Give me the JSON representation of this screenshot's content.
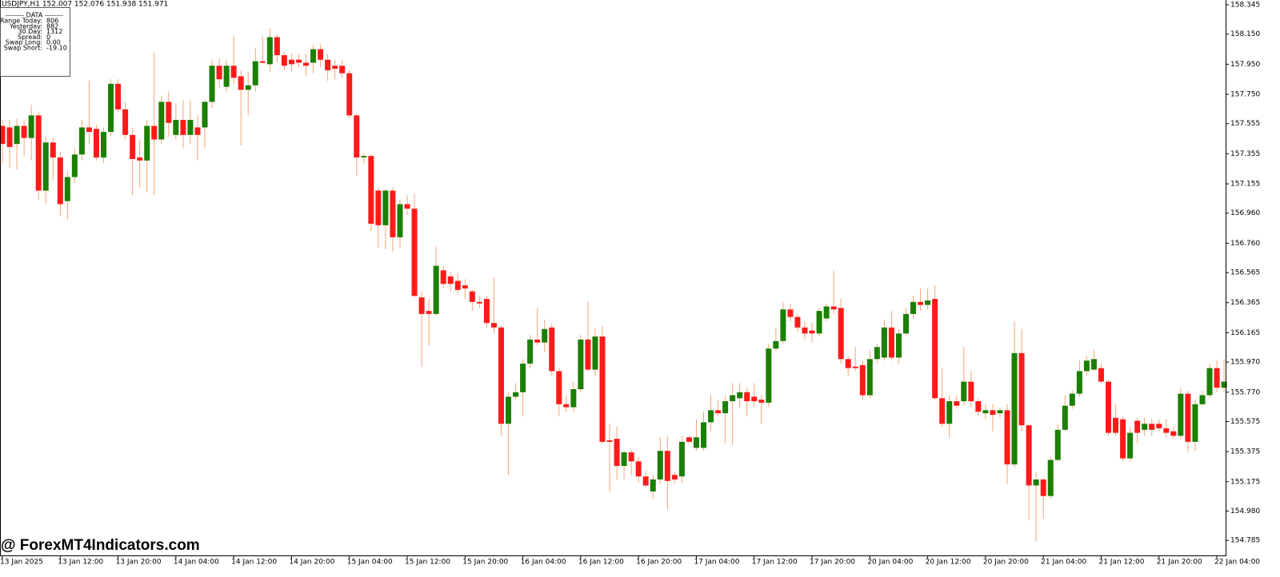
{
  "chart_data": {
    "type": "candlestick",
    "title": "USDJPY,H1  152.007 152.076 151.938 151.971",
    "watermark": "@ ForexMT4Indicators.com",
    "up_color": "#1b7f00",
    "down_color": "#ff1a1a",
    "wick_color": "#f2a57a",
    "ylim": [
      154.685,
      158.377
    ],
    "yticks": [
      158.345,
      {
        "value": 158.15,
        "label": "158.150"
      },
      {
        "value": 157.95,
        "label": "157.950"
      },
      {
        "value": 157.75,
        "label": "157.750"
      },
      157.555,
      157.355,
      157.155,
      {
        "value": 156.96,
        "label": "156.960"
      },
      {
        "value": 156.76,
        "label": "156.760"
      },
      156.565,
      156.365,
      156.165,
      {
        "value": 155.97,
        "label": "155.970"
      },
      {
        "value": 155.77,
        "label": "155.770"
      },
      155.575,
      155.375,
      155.175,
      {
        "value": 154.98,
        "label": "154.980"
      },
      154.785
    ],
    "xticks": [
      {
        "value": 0,
        "label": "13 Jan 2025"
      },
      {
        "value": 8,
        "label": "13 Jan 12:00"
      },
      {
        "value": 16,
        "label": "13 Jan 20:00"
      },
      {
        "value": 24,
        "label": "14 Jan 04:00"
      },
      {
        "value": 32,
        "label": "14 Jan 12:00"
      },
      {
        "value": 40,
        "label": "14 Jan 20:00"
      },
      {
        "value": 48,
        "label": "15 Jan 04:00"
      },
      {
        "value": 56,
        "label": "15 Jan 12:00"
      },
      {
        "value": 64,
        "label": "15 Jan 20:00"
      },
      {
        "value": 72,
        "label": "16 Jan 04:00"
      },
      {
        "value": 80,
        "label": "16 Jan 12:00"
      },
      {
        "value": 88,
        "label": "16 Jan 20:00"
      },
      {
        "value": 96,
        "label": "17 Jan 04:00"
      },
      {
        "value": 104,
        "label": "17 Jan 12:00"
      },
      {
        "value": 112,
        "label": "17 Jan 20:00"
      },
      {
        "value": 120,
        "label": "20 Jan 04:00"
      },
      {
        "value": 128,
        "label": "20 Jan 12:00"
      },
      {
        "value": 136,
        "label": "20 Jan 20:00"
      },
      {
        "value": 144,
        "label": "21 Jan 04:00"
      },
      {
        "value": 152,
        "label": "21 Jan 12:00"
      },
      {
        "value": 160,
        "label": "21 Jan 20:00"
      },
      {
        "value": 168,
        "label": "22 Jan 04:00"
      }
    ],
    "data_panel": {
      "title": "--------  DATA  --------",
      "rows": [
        [
          "Range Today:",
          "806"
        ],
        [
          "Yesterday:",
          "882"
        ],
        [
          "30 Day:",
          "1312"
        ],
        [
          "Spread:",
          "0"
        ],
        [
          "Swap Long:",
          "0.00"
        ],
        [
          "Swap Short:",
          "-19.10"
        ]
      ]
    },
    "ohlc": [
      [
        157.54,
        157.58,
        157.29,
        157.42
      ],
      [
        157.53,
        157.58,
        157.26,
        157.4
      ],
      [
        157.42,
        157.59,
        157.25,
        157.54
      ],
      [
        157.54,
        157.58,
        157.34,
        157.46
      ],
      [
        157.46,
        157.68,
        157.31,
        157.61
      ],
      [
        157.61,
        157.63,
        157.05,
        157.11
      ],
      [
        157.11,
        157.47,
        157.02,
        157.43
      ],
      [
        157.43,
        157.46,
        157.18,
        157.33
      ],
      [
        157.33,
        157.37,
        156.94,
        157.02
      ],
      [
        157.04,
        157.24,
        156.92,
        157.2
      ],
      [
        157.2,
        157.39,
        157.16,
        157.35
      ],
      [
        157.35,
        157.58,
        157.31,
        157.53
      ],
      [
        157.53,
        157.84,
        157.42,
        157.5
      ],
      [
        157.52,
        157.55,
        157.31,
        157.33
      ],
      [
        157.33,
        157.53,
        157.29,
        157.5
      ],
      [
        157.5,
        157.85,
        157.47,
        157.82
      ],
      [
        157.82,
        157.85,
        157.63,
        157.65
      ],
      [
        157.65,
        157.7,
        157.45,
        157.48
      ],
      [
        157.48,
        157.53,
        157.08,
        157.32
      ],
      [
        157.33,
        157.45,
        157.13,
        157.31
      ],
      [
        157.31,
        157.58,
        157.1,
        157.54
      ],
      [
        157.54,
        158.03,
        157.08,
        157.45
      ],
      [
        157.45,
        157.74,
        157.42,
        157.7
      ],
      [
        157.7,
        157.77,
        157.47,
        157.56
      ],
      [
        157.48,
        157.69,
        157.45,
        157.58
      ],
      [
        157.58,
        157.71,
        157.39,
        157.48
      ],
      [
        157.48,
        157.71,
        157.42,
        157.58
      ],
      [
        157.53,
        157.61,
        157.31,
        157.48
      ],
      [
        157.53,
        157.71,
        157.39,
        157.7
      ],
      [
        157.7,
        157.98,
        157.66,
        157.94
      ],
      [
        157.94,
        157.99,
        157.79,
        157.85
      ],
      [
        157.8,
        157.98,
        157.77,
        157.94
      ],
      [
        157.94,
        158.14,
        157.82,
        157.86
      ],
      [
        157.87,
        157.91,
        157.41,
        157.78
      ],
      [
        157.78,
        157.9,
        157.61,
        157.81
      ],
      [
        157.81,
        158.06,
        157.77,
        157.97
      ],
      [
        157.97,
        158.14,
        157.95,
        157.96
      ],
      [
        157.95,
        158.19,
        157.9,
        158.13
      ],
      [
        158.13,
        158.15,
        157.96,
        158.01
      ],
      [
        158.01,
        158.03,
        157.91,
        157.94
      ],
      [
        157.98,
        158.02,
        157.9,
        157.95
      ],
      [
        157.98,
        158.02,
        157.93,
        157.96
      ],
      [
        157.96,
        158.02,
        157.87,
        157.94
      ],
      [
        157.96,
        158.08,
        157.89,
        158.05
      ],
      [
        158.05,
        158.08,
        157.93,
        157.98
      ],
      [
        157.98,
        158.02,
        157.84,
        157.91
      ],
      [
        157.94,
        157.98,
        157.85,
        157.92
      ],
      [
        157.94,
        157.98,
        157.86,
        157.89
      ],
      [
        157.89,
        157.91,
        157.59,
        157.61
      ],
      [
        157.61,
        157.62,
        157.21,
        157.33
      ],
      [
        157.33,
        157.36,
        157.29,
        157.34
      ],
      [
        157.34,
        157.35,
        156.84,
        156.89
      ],
      [
        157.11,
        157.13,
        156.73,
        156.88
      ],
      [
        156.88,
        157.12,
        156.72,
        157.11
      ],
      [
        157.11,
        157.13,
        156.7,
        156.8
      ],
      [
        156.8,
        157.05,
        156.73,
        157.02
      ],
      [
        157.02,
        157.08,
        156.95,
        156.99
      ],
      [
        156.99,
        157.09,
        156.4,
        156.41
      ],
      [
        156.4,
        156.44,
        155.94,
        156.29
      ],
      [
        156.31,
        156.39,
        156.08,
        156.29
      ],
      [
        156.29,
        156.74,
        156.28,
        156.61
      ],
      [
        156.58,
        156.61,
        156.46,
        156.49
      ],
      [
        156.54,
        156.57,
        156.44,
        156.49
      ],
      [
        156.51,
        156.56,
        156.42,
        156.45
      ],
      [
        156.48,
        156.52,
        156.39,
        156.46
      ],
      [
        156.44,
        156.45,
        156.31,
        156.37
      ],
      [
        156.37,
        156.41,
        156.33,
        156.36
      ],
      [
        156.39,
        156.41,
        156.2,
        156.23
      ],
      [
        156.23,
        156.53,
        156.16,
        156.2
      ],
      [
        156.2,
        156.21,
        155.48,
        155.56
      ],
      [
        155.56,
        155.77,
        155.22,
        155.74
      ],
      [
        155.74,
        155.83,
        155.72,
        155.77
      ],
      [
        155.77,
        155.99,
        155.61,
        155.96
      ],
      [
        155.96,
        156.15,
        155.93,
        156.12
      ],
      [
        156.12,
        156.33,
        156.08,
        156.1
      ],
      [
        156.1,
        156.25,
        156.04,
        156.19
      ],
      [
        156.2,
        156.23,
        155.88,
        155.91
      ],
      [
        155.91,
        155.93,
        155.61,
        155.69
      ],
      [
        155.69,
        155.75,
        155.64,
        155.67
      ],
      [
        155.67,
        155.84,
        155.64,
        155.79
      ],
      [
        155.79,
        156.15,
        155.77,
        156.12
      ],
      [
        156.12,
        156.37,
        155.91,
        155.92
      ],
      [
        155.92,
        156.2,
        155.88,
        156.14
      ],
      [
        156.14,
        156.21,
        155.43,
        155.44
      ],
      [
        155.45,
        155.56,
        155.11,
        155.44
      ],
      [
        155.46,
        155.54,
        155.19,
        155.28
      ],
      [
        155.28,
        155.38,
        155.19,
        155.37
      ],
      [
        155.37,
        155.39,
        155.22,
        155.31
      ],
      [
        155.31,
        155.34,
        155.17,
        155.21
      ],
      [
        155.21,
        155.25,
        155.14,
        155.15
      ],
      [
        155.11,
        155.22,
        155.06,
        155.19
      ],
      [
        155.19,
        155.47,
        155.16,
        155.38
      ],
      [
        155.38,
        155.48,
        154.99,
        155.18
      ],
      [
        155.22,
        155.24,
        155.16,
        155.19
      ],
      [
        155.21,
        155.48,
        155.17,
        155.44
      ],
      [
        155.47,
        155.48,
        155.43,
        155.44
      ],
      [
        155.4,
        155.59,
        155.38,
        155.47
      ],
      [
        155.4,
        155.64,
        155.38,
        155.57
      ],
      [
        155.57,
        155.75,
        155.51,
        155.65
      ],
      [
        155.65,
        155.72,
        155.61,
        155.63
      ],
      [
        155.63,
        155.75,
        155.43,
        155.71
      ],
      [
        155.71,
        155.83,
        155.42,
        155.75
      ],
      [
        155.73,
        155.83,
        155.67,
        155.77
      ],
      [
        155.77,
        155.8,
        155.61,
        155.71
      ],
      [
        155.74,
        155.83,
        155.67,
        155.71
      ],
      [
        155.72,
        155.75,
        155.56,
        155.7
      ],
      [
        155.7,
        156.09,
        155.67,
        156.06
      ],
      [
        156.06,
        156.2,
        156.04,
        156.11
      ],
      [
        156.11,
        156.37,
        156.09,
        156.32
      ],
      [
        156.32,
        156.36,
        156.24,
        156.27
      ],
      [
        156.27,
        156.29,
        156.17,
        156.2
      ],
      [
        156.2,
        156.24,
        156.12,
        156.16
      ],
      [
        156.18,
        156.23,
        156.1,
        156.16
      ],
      [
        156.16,
        156.33,
        156.14,
        156.31
      ],
      [
        156.26,
        156.36,
        156.24,
        156.34
      ],
      [
        156.34,
        156.58,
        156.29,
        156.32
      ],
      [
        156.33,
        156.39,
        155.96,
        155.99
      ],
      [
        155.99,
        156.01,
        155.88,
        155.93
      ],
      [
        155.94,
        156.07,
        155.91,
        155.93
      ],
      [
        155.95,
        155.98,
        155.72,
        155.75
      ],
      [
        155.75,
        156.05,
        155.73,
        155.99
      ],
      [
        155.99,
        156.09,
        155.96,
        156.07
      ],
      [
        156.0,
        156.25,
        155.98,
        156.2
      ],
      [
        156.2,
        156.31,
        155.98,
        156.0
      ],
      [
        156.0,
        156.19,
        155.96,
        156.16
      ],
      [
        156.16,
        156.33,
        156.15,
        156.29
      ],
      [
        156.29,
        156.41,
        156.26,
        156.37
      ],
      [
        156.37,
        156.46,
        156.31,
        156.35
      ],
      [
        156.35,
        156.46,
        156.32,
        156.38
      ],
      [
        156.39,
        156.48,
        155.72,
        155.73
      ],
      [
        155.73,
        155.93,
        155.54,
        155.56
      ],
      [
        155.56,
        155.75,
        155.47,
        155.71
      ],
      [
        155.71,
        155.75,
        155.66,
        155.68
      ],
      [
        155.71,
        156.07,
        155.68,
        155.84
      ],
      [
        155.84,
        155.91,
        155.67,
        155.71
      ],
      [
        155.71,
        155.73,
        155.61,
        155.64
      ],
      [
        155.63,
        155.69,
        155.59,
        155.65
      ],
      [
        155.65,
        155.69,
        155.51,
        155.62
      ],
      [
        155.63,
        155.67,
        155.6,
        155.65
      ],
      [
        155.65,
        155.69,
        155.16,
        155.29
      ],
      [
        155.29,
        156.24,
        155.27,
        156.03
      ],
      [
        156.03,
        156.19,
        155.51,
        155.55
      ],
      [
        155.55,
        155.56,
        154.92,
        155.15
      ],
      [
        155.15,
        155.24,
        154.78,
        155.19
      ],
      [
        155.19,
        155.2,
        154.93,
        155.08
      ],
      [
        155.08,
        155.34,
        155.06,
        155.32
      ],
      [
        155.32,
        155.56,
        155.31,
        155.52
      ],
      [
        155.52,
        155.75,
        155.51,
        155.68
      ],
      [
        155.68,
        155.78,
        155.66,
        155.76
      ],
      [
        155.76,
        155.98,
        155.74,
        155.91
      ],
      [
        155.91,
        156.01,
        155.88,
        155.98
      ],
      [
        155.92,
        156.05,
        155.91,
        155.99
      ],
      [
        155.93,
        155.96,
        155.83,
        155.84
      ],
      [
        155.84,
        155.85,
        155.48,
        155.5
      ],
      [
        155.6,
        155.69,
        155.48,
        155.5
      ],
      [
        155.59,
        155.61,
        155.31,
        155.33
      ],
      [
        155.33,
        155.54,
        155.31,
        155.5
      ],
      [
        155.58,
        155.6,
        155.43,
        155.5
      ],
      [
        155.52,
        155.6,
        155.48,
        155.56
      ],
      [
        155.56,
        155.59,
        155.48,
        155.52
      ],
      [
        155.56,
        155.59,
        155.51,
        155.53
      ],
      [
        155.53,
        155.59,
        155.47,
        155.5
      ],
      [
        155.51,
        155.54,
        155.46,
        155.48
      ],
      [
        155.48,
        155.8,
        155.46,
        155.76
      ],
      [
        155.76,
        155.78,
        155.37,
        155.44
      ],
      [
        155.44,
        155.72,
        155.38,
        155.69
      ],
      [
        155.69,
        155.78,
        155.68,
        155.75
      ],
      [
        155.75,
        155.96,
        155.73,
        155.93
      ],
      [
        155.93,
        155.98,
        155.77,
        155.8
      ],
      [
        155.8,
        155.99,
        155.77,
        155.84
      ]
    ]
  }
}
